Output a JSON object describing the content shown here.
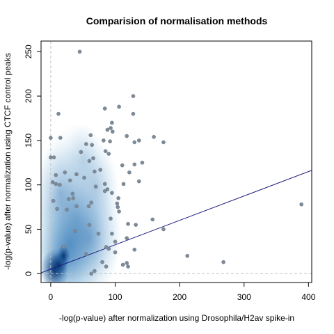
{
  "chart_data": {
    "type": "scatter",
    "title": "Comparision of normalisation methods",
    "xlabel": "-log(p-value) after normalization using Drosophila/H2av spike-in",
    "ylabel": "-log(p-value) after normalization using CTCF control peaks",
    "xlim": [
      -15,
      405
    ],
    "ylim": [
      -10,
      262
    ],
    "x_ticks": [
      0,
      100,
      200,
      300,
      400
    ],
    "y_ticks": [
      0,
      50,
      100,
      150,
      200,
      250
    ],
    "x_tick_labels": [
      "0",
      "100",
      "200",
      "300",
      "400"
    ],
    "y_tick_labels": [
      "0",
      "50",
      "100",
      "150",
      "200",
      "250"
    ],
    "grid": false,
    "legend": "none",
    "reference_lines": {
      "x": 0,
      "y": 0
    },
    "regression_line": {
      "intercept": 5,
      "slope": 0.275
    },
    "colors": {
      "points": "#7d8b99",
      "density": "#08306b",
      "fit_line": "#1a1a7a",
      "reference": "#c0c0c0"
    },
    "points": [
      [
        45,
        250
      ],
      [
        128,
        200
      ],
      [
        106,
        188
      ],
      [
        84,
        186
      ],
      [
        128,
        180
      ],
      [
        12,
        180
      ],
      [
        95,
        170
      ],
      [
        93,
        164
      ],
      [
        88,
        162
      ],
      [
        96,
        160
      ],
      [
        175,
        148
      ],
      [
        160,
        154
      ],
      [
        0,
        153
      ],
      [
        15,
        153
      ],
      [
        62,
        156
      ],
      [
        118,
        155
      ],
      [
        137,
        150
      ],
      [
        130,
        148
      ],
      [
        55,
        146
      ],
      [
        0,
        131
      ],
      [
        5,
        131
      ],
      [
        82,
        150
      ],
      [
        92,
        149
      ],
      [
        85,
        138
      ],
      [
        47,
        137
      ],
      [
        64,
        145
      ],
      [
        90,
        135
      ],
      [
        142,
        125
      ],
      [
        130,
        123
      ],
      [
        77,
        117
      ],
      [
        111,
        122
      ],
      [
        60,
        127
      ],
      [
        66,
        130
      ],
      [
        122,
        114
      ],
      [
        22,
        114
      ],
      [
        40,
        112
      ],
      [
        68,
        115
      ],
      [
        137,
        104
      ],
      [
        3,
        103
      ],
      [
        8,
        111
      ],
      [
        30,
        105
      ],
      [
        52,
        108
      ],
      [
        8,
        101
      ],
      [
        14,
        100
      ],
      [
        84,
        101
      ],
      [
        70,
        98
      ],
      [
        113,
        101
      ],
      [
        88,
        95
      ],
      [
        84,
        93
      ],
      [
        95,
        91
      ],
      [
        105,
        85
      ],
      [
        103,
        79
      ],
      [
        34,
        90
      ],
      [
        28,
        84
      ],
      [
        4,
        82
      ],
      [
        25,
        72
      ],
      [
        10,
        73
      ],
      [
        35,
        85
      ],
      [
        40,
        76
      ],
      [
        59,
        76
      ],
      [
        63,
        80
      ],
      [
        104,
        75
      ],
      [
        106,
        70
      ],
      [
        93,
        62
      ],
      [
        120,
        56
      ],
      [
        132,
        55
      ],
      [
        158,
        61
      ],
      [
        175,
        50
      ],
      [
        118,
        40
      ],
      [
        95,
        45
      ],
      [
        389,
        78
      ],
      [
        212,
        20
      ],
      [
        268,
        13
      ],
      [
        100,
        24
      ],
      [
        90,
        28
      ],
      [
        130,
        27
      ],
      [
        118,
        12
      ],
      [
        112,
        10
      ],
      [
        120,
        8
      ],
      [
        80,
        13
      ],
      [
        86,
        8
      ],
      [
        63,
        0
      ],
      [
        68,
        3
      ],
      [
        100,
        36
      ],
      [
        86,
        30
      ],
      [
        74,
        45
      ],
      [
        55,
        22
      ],
      [
        20,
        30
      ],
      [
        38,
        48
      ],
      [
        60,
        55
      ]
    ]
  }
}
